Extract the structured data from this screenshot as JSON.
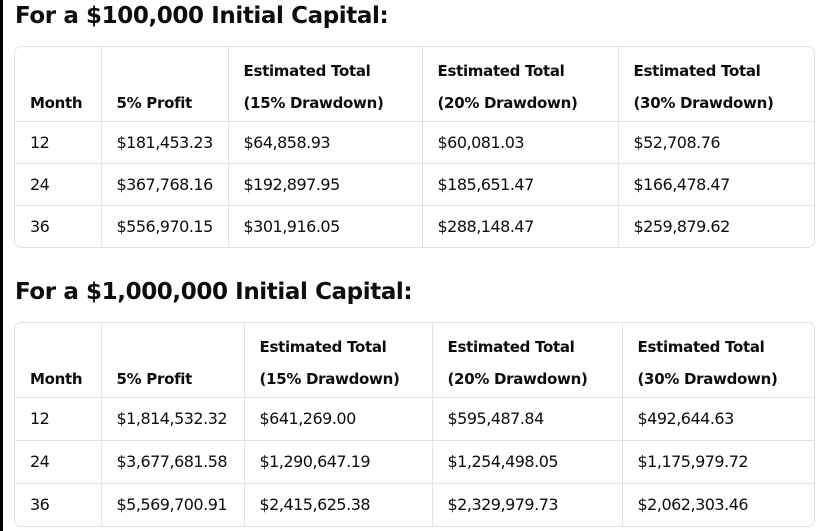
{
  "sections": [
    {
      "title": "For a $100,000 Initial Capital:",
      "headers": [
        [
          "Month"
        ],
        [
          "5% Profit"
        ],
        [
          "Estimated Total",
          "(15% Drawdown)"
        ],
        [
          "Estimated Total",
          "(20% Drawdown)"
        ],
        [
          "Estimated Total",
          "(30% Drawdown)"
        ]
      ],
      "rows": [
        [
          "12",
          "$181,453.23",
          "$64,858.93",
          "$60,081.03",
          "$52,708.76"
        ],
        [
          "24",
          "$367,768.16",
          "$192,897.95",
          "$185,651.47",
          "$166,478.47"
        ],
        [
          "36",
          "$556,970.15",
          "$301,916.05",
          "$288,148.47",
          "$259,879.62"
        ]
      ]
    },
    {
      "title": "For a $1,000,000 Initial Capital:",
      "headers": [
        [
          "Month"
        ],
        [
          "5% Profit"
        ],
        [
          "Estimated Total",
          "(15% Drawdown)"
        ],
        [
          "Estimated Total",
          "(20% Drawdown)"
        ],
        [
          "Estimated Total",
          "(30% Drawdown)"
        ]
      ],
      "rows": [
        [
          "12",
          "$1,814,532.32",
          "$641,269.00",
          "$595,487.84",
          "$492,644.63"
        ],
        [
          "24",
          "$3,677,681.58",
          "$1,290,647.19",
          "$1,254,498.05",
          "$1,175,979.72"
        ],
        [
          "36",
          "$5,569,700.91",
          "$2,415,625.38",
          "$2,329,979.73",
          "$2,062,303.46"
        ]
      ]
    }
  ]
}
